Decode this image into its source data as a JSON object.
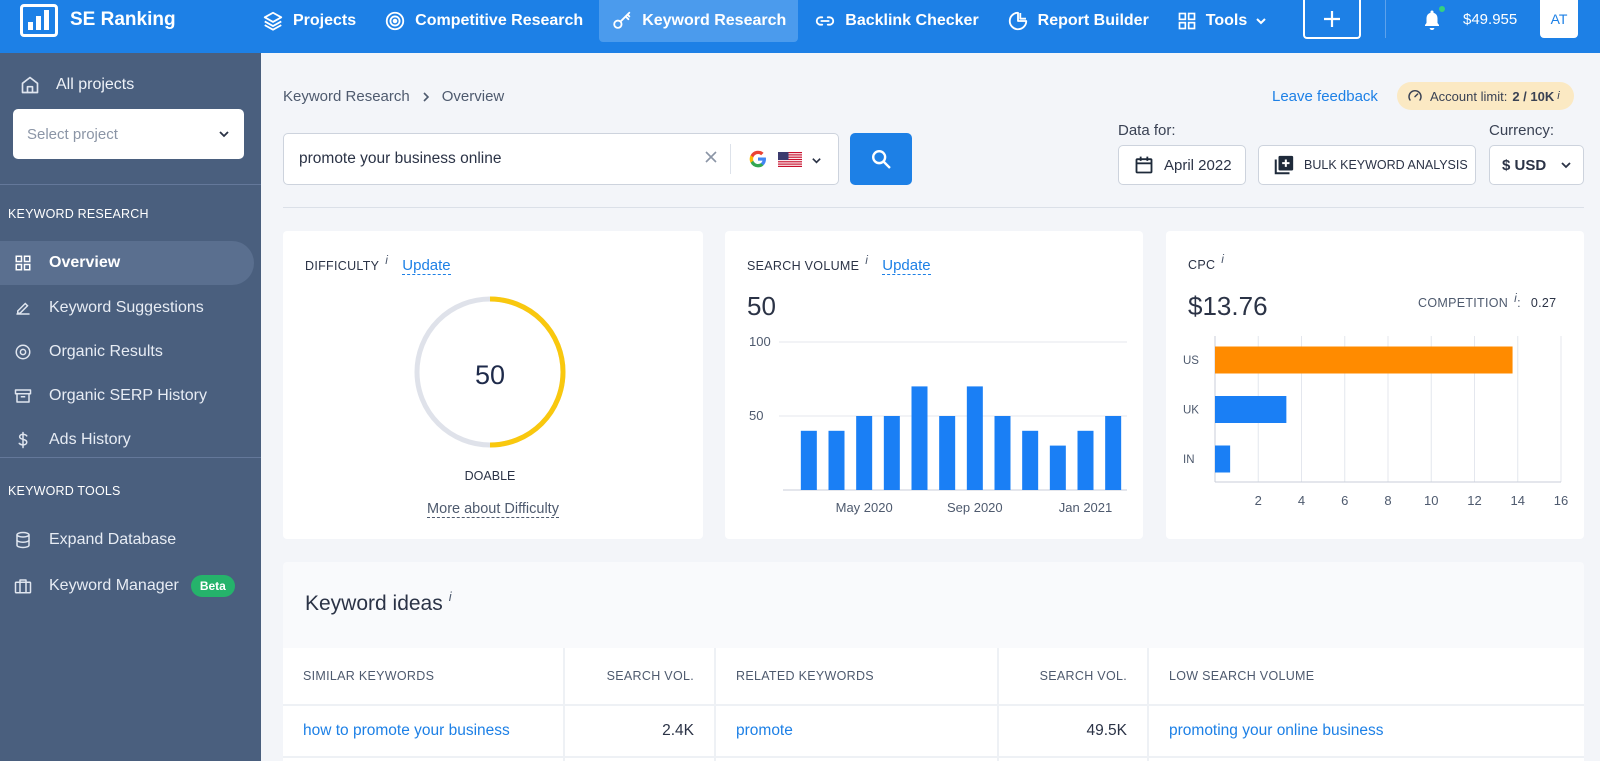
{
  "brand": {
    "name": "SE Ranking"
  },
  "nav": {
    "items": [
      {
        "label": "Projects",
        "icon": "layers-icon"
      },
      {
        "label": "Competitive Research",
        "icon": "target-icon"
      },
      {
        "label": "Keyword Research",
        "icon": "key-icon",
        "active": true
      },
      {
        "label": "Backlink Checker",
        "icon": "link-icon"
      },
      {
        "label": "Report Builder",
        "icon": "pie-chart-icon"
      },
      {
        "label": "Tools",
        "icon": "grid-icon"
      }
    ],
    "balance": "$49.955",
    "avatar": "AT"
  },
  "sidebar": {
    "all_projects": "All projects",
    "select_project_placeholder": "Select project",
    "section_keyword_research": "KEYWORD RESEARCH",
    "items_research": [
      {
        "label": "Overview",
        "active": true
      },
      {
        "label": "Keyword Suggestions"
      },
      {
        "label": "Organic Results"
      },
      {
        "label": "Organic SERP History"
      },
      {
        "label": "Ads History"
      }
    ],
    "section_keyword_tools": "KEYWORD TOOLS",
    "items_tools": [
      {
        "label": "Expand Database"
      },
      {
        "label": "Keyword Manager",
        "badge": "Beta"
      }
    ]
  },
  "breadcrumb": {
    "root": "Keyword Research",
    "current": "Overview"
  },
  "header": {
    "leave_feedback": "Leave feedback",
    "account_limit_label": "Account limit:",
    "account_limit_value": "2 / 10K",
    "info": "i"
  },
  "search": {
    "value": "promote your business online",
    "engine": "google-icon",
    "country_flag": "us-flag-icon"
  },
  "controls": {
    "data_for_label": "Data for:",
    "date": "April 2022",
    "bulk_label": "BULK KEYWORD ANALYSIS",
    "currency_label": "Currency:",
    "currency": "$ USD"
  },
  "difficulty": {
    "title": "DIFFICULTY",
    "info": "i",
    "update": "Update",
    "value": "50",
    "fraction": 0.5,
    "level": "DOABLE",
    "more_link": "More about Difficulty",
    "colors": {
      "fill": "#f9c80e",
      "track": "#dfe2ea"
    }
  },
  "search_volume": {
    "title": "SEARCH VOLUME",
    "info": "i",
    "update": "Update",
    "value": "50"
  },
  "cpc": {
    "title": "CPC",
    "info": "i",
    "value": "$13.76",
    "competition_label": "COMPETITION",
    "competition_info": "i",
    "competition_sep": ":",
    "competition_value": "0.27"
  },
  "chart_data": [
    {
      "type": "bar",
      "title": "",
      "xlabel": "",
      "ylabel": "",
      "ylim": [
        0,
        100
      ],
      "yticks": [
        50,
        100
      ],
      "x_tick_labels": [
        "May 2020",
        "Sep 2020",
        "Jan 2021"
      ],
      "x_tick_positions": [
        2,
        6,
        10
      ],
      "values": [
        40,
        40,
        50,
        50,
        70,
        50,
        70,
        50,
        40,
        30,
        40,
        50
      ],
      "color": "#1a7ff5",
      "grid": true
    },
    {
      "type": "bar",
      "orientation": "horizontal",
      "title": "",
      "categories": [
        "US",
        "UK",
        "IN"
      ],
      "values": [
        13.76,
        3.3,
        0.7
      ],
      "colors": [
        "#ff8b00",
        "#1a7ff5",
        "#1a7ff5"
      ],
      "xlim": [
        0,
        16
      ],
      "xticks": [
        2,
        4,
        6,
        8,
        10,
        12,
        14,
        16
      ],
      "grid": true
    }
  ],
  "keyword_ideas": {
    "title": "Keyword ideas",
    "info": "i",
    "columns": [
      {
        "header": "SIMILAR KEYWORDS",
        "value": "how to promote your business",
        "kind": "link"
      },
      {
        "header": "SEARCH VOL.",
        "value": "2.4K",
        "kind": "number"
      },
      {
        "header": "RELATED KEYWORDS",
        "value": "promote",
        "kind": "link"
      },
      {
        "header": "SEARCH VOL.",
        "value": "49.5K",
        "kind": "number"
      },
      {
        "header": "LOW SEARCH VOLUME",
        "value": "promoting your online business",
        "kind": "link"
      }
    ]
  }
}
